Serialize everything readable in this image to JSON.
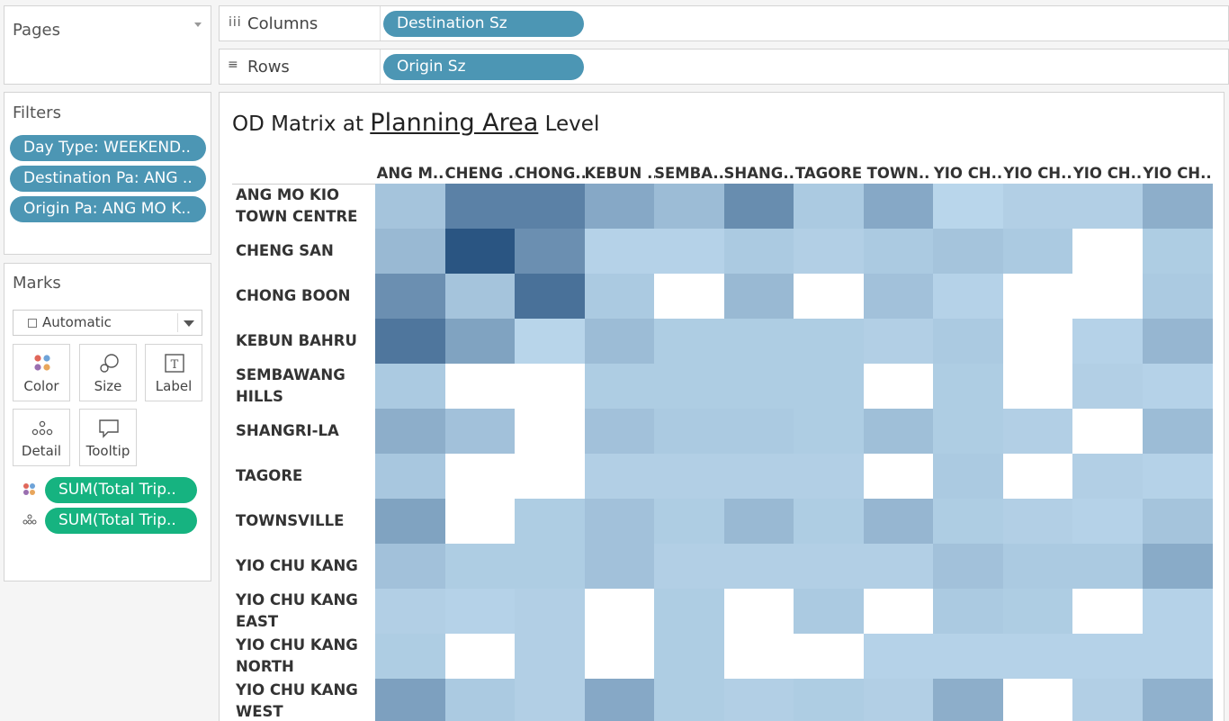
{
  "pages": {
    "title": "Pages"
  },
  "filters": {
    "title": "Filters",
    "items": [
      "Day Type: WEEKEND..",
      "Destination Pa: ANG ..",
      "Origin Pa: ANG MO K.."
    ]
  },
  "marks": {
    "title": "Marks",
    "type": "Automatic",
    "buttons": [
      "Color",
      "Size",
      "Label",
      "Detail",
      "Tooltip"
    ],
    "pills": [
      "SUM(Total Trip..",
      "SUM(Total Trip.."
    ]
  },
  "shelves": {
    "columns_label": "Columns",
    "columns_pill": "Destination Sz",
    "rows_label": "Rows",
    "rows_pill": "Origin Sz"
  },
  "viz": {
    "title_prefix": "OD Matrix at ",
    "title_link": "Planning Area",
    "title_suffix": " Level"
  },
  "colors": {
    "pill_blue": "#4c96b4",
    "pill_green": "#16b380",
    "heat_low": "#c4e0f3",
    "heat_high": "#2a5582",
    "empty": "#ffffff"
  },
  "chart_data": {
    "type": "heatmap",
    "x_categories": [
      "ANG M..",
      "CHENG ..",
      "CHONG..",
      "KEBUN ..",
      "SEMBA..",
      "SHANG..",
      "TAGORE",
      "TOWN..",
      "YIO CH..",
      "YIO CH..",
      "YIO CH..",
      "YIO CH.."
    ],
    "y_categories": [
      "ANG MO KIO TOWN CENTRE",
      "CHENG SAN",
      "CHONG BOON",
      "KEBUN BAHRU",
      "SEMBAWANG HILLS",
      "SHANGRI-LA",
      "TAGORE",
      "TOWNSVILLE",
      "YIO CHU KANG",
      "YIO CHU KANG EAST",
      "YIO CHU KANG NORTH",
      "YIO CHU KANG WEST"
    ],
    "values": [
      [
        0.2,
        0.68,
        0.68,
        0.4,
        0.26,
        0.6,
        0.16,
        0.4,
        0.07,
        0.12,
        0.12,
        0.36
      ],
      [
        0.28,
        1.0,
        0.58,
        0.1,
        0.1,
        0.16,
        0.12,
        0.16,
        0.2,
        0.16,
        null,
        0.14
      ],
      [
        0.58,
        0.2,
        0.8,
        0.16,
        null,
        0.28,
        null,
        0.22,
        0.1,
        null,
        null,
        0.16
      ],
      [
        0.76,
        0.44,
        0.08,
        0.26,
        0.14,
        0.14,
        0.14,
        0.12,
        0.16,
        null,
        0.1,
        0.3
      ],
      [
        0.16,
        null,
        null,
        0.14,
        0.14,
        0.14,
        0.14,
        null,
        0.14,
        null,
        0.12,
        0.1
      ],
      [
        0.36,
        0.22,
        null,
        0.22,
        0.16,
        0.16,
        0.14,
        0.24,
        0.14,
        0.12,
        null,
        0.26
      ],
      [
        0.18,
        null,
        null,
        0.12,
        0.12,
        0.12,
        0.12,
        null,
        0.16,
        null,
        0.12,
        0.1
      ],
      [
        0.44,
        null,
        0.14,
        0.22,
        0.14,
        0.28,
        0.14,
        0.3,
        0.14,
        0.12,
        0.1,
        0.2
      ],
      [
        0.22,
        0.14,
        0.14,
        0.22,
        0.12,
        0.12,
        0.12,
        0.12,
        0.22,
        0.16,
        0.16,
        0.38
      ],
      [
        0.12,
        0.1,
        0.12,
        null,
        0.14,
        null,
        0.16,
        null,
        0.16,
        0.14,
        null,
        0.1
      ],
      [
        0.14,
        null,
        0.12,
        null,
        0.14,
        null,
        null,
        0.1,
        0.1,
        0.1,
        0.1,
        0.1
      ],
      [
        0.46,
        0.16,
        0.12,
        0.4,
        0.14,
        0.12,
        0.14,
        0.12,
        0.36,
        null,
        0.12,
        0.34
      ]
    ],
    "legend": "none",
    "grid": false
  }
}
